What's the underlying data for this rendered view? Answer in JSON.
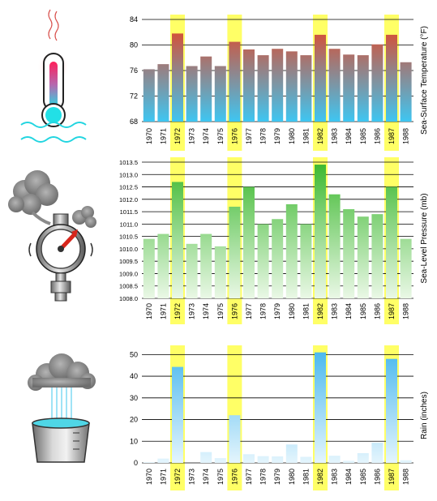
{
  "chart_data": [
    {
      "type": "bar",
      "categories": [
        "1970",
        "1971",
        "1972",
        "1973",
        "1974",
        "1975",
        "1976",
        "1977",
        "1978",
        "1979",
        "1980",
        "1981",
        "1982",
        "1983",
        "1984",
        "1985",
        "1986",
        "1987",
        "1988"
      ],
      "values": [
        76.2,
        77.0,
        81.8,
        76.7,
        78.2,
        76.7,
        80.5,
        79.3,
        78.4,
        79.4,
        79.0,
        78.4,
        81.6,
        79.4,
        78.5,
        78.4,
        80.1,
        81.6,
        77.3
      ],
      "highlight": [
        "1972",
        "1976",
        "1982",
        "1987"
      ],
      "ylabel": "Sea-Surface Temperature (°F)",
      "ylim": [
        68,
        84
      ],
      "yticks": [
        "68",
        "72",
        "76",
        "80",
        "84"
      ],
      "grid": true,
      "colors": {
        "top": "#e8411f",
        "bottom": "#3ec6f2",
        "highlight": "#ffff66"
      },
      "icon": "thermometer-icon"
    },
    {
      "type": "bar",
      "categories": [
        "1970",
        "1971",
        "1972",
        "1973",
        "1974",
        "1975",
        "1976",
        "1977",
        "1978",
        "1979",
        "1980",
        "1981",
        "1982",
        "1983",
        "1984",
        "1985",
        "1986",
        "1987",
        "1988"
      ],
      "values": [
        1010.4,
        1010.6,
        1012.7,
        1010.2,
        1010.6,
        1010.1,
        1011.7,
        1012.5,
        1011.0,
        1011.2,
        1011.8,
        1011.0,
        1013.4,
        1012.2,
        1011.6,
        1011.3,
        1011.4,
        1012.5,
        1010.4
      ],
      "highlight": [
        "1972",
        "1976",
        "1982",
        "1987"
      ],
      "ylabel": "Sea-Level Pressure (mb)",
      "ylim": [
        1008.0,
        1013.5
      ],
      "yticks": [
        "1008.0",
        "1008.5",
        "1009.0",
        "1009.5",
        "1010.0",
        "1010.5",
        "1011.0",
        "1011.5",
        "1012.0",
        "1012.5",
        "1013.0",
        "1013.5"
      ],
      "grid": true,
      "colors": {
        "top": "#3bb82e",
        "bottom": "#eaf8e6",
        "highlight": "#ffff66"
      },
      "icon": "pressure-gauge-icon"
    },
    {
      "type": "bar",
      "categories": [
        "1970",
        "1971",
        "1972",
        "1973",
        "1974",
        "1975",
        "1976",
        "1977",
        "1978",
        "1979",
        "1980",
        "1981",
        "1982",
        "1983",
        "1984",
        "1985",
        "1986",
        "1987",
        "1988"
      ],
      "values": [
        0.3,
        2.0,
        44.3,
        0,
        5.0,
        2.2,
        22.0,
        4.0,
        3.1,
        3.0,
        8.5,
        2.8,
        51.0,
        3.3,
        1.0,
        4.5,
        9.3,
        48.0,
        1.2
      ],
      "highlight": [
        "1972",
        "1976",
        "1982",
        "1987"
      ],
      "ylabel": "Rain (inches)",
      "ylim": [
        0,
        52
      ],
      "yticks": [
        "0",
        "10",
        "20",
        "30",
        "40",
        "50"
      ],
      "grid": true,
      "colors": {
        "top": "#4ab8ee",
        "bottom": "#e4f5fd",
        "highlight": "#ffff66"
      },
      "icon": "rain-bucket-icon"
    }
  ]
}
